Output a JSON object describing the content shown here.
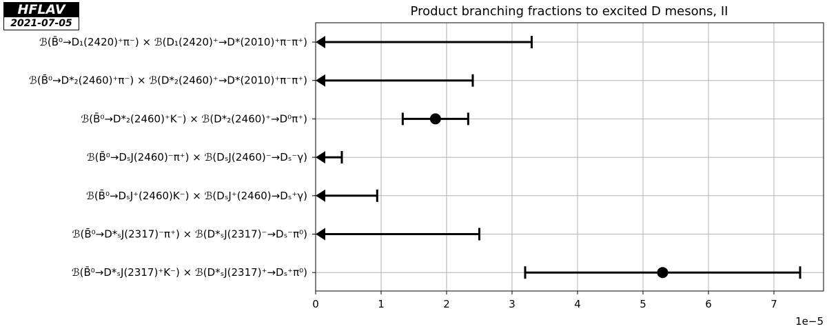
{
  "badge": {
    "name": "HFLAV",
    "date": "2021-07-05"
  },
  "chart_data": {
    "type": "errorbar",
    "title": "Product branching fractions to excited D mesons, II",
    "xlabel": "",
    "x_multiplier": "1e−5",
    "xlim": [
      0,
      7.8
    ],
    "x_ticks": [
      "0",
      "1",
      "2",
      "3",
      "4",
      "5",
      "6",
      "7"
    ],
    "grid": true,
    "entries": [
      {
        "label": "ℬ(B̄⁰→D₁(2420)⁺π⁻) × ℬ(D₁(2420)⁺→D*(2010)⁺π⁻π⁺)",
        "kind": "upper_limit",
        "upper": 3.3
      },
      {
        "label": "ℬ(B̄⁰→D*₂(2460)⁺π⁻) × ℬ(D*₂(2460)⁺→D*(2010)⁺π⁻π⁺)",
        "kind": "upper_limit",
        "upper": 2.4
      },
      {
        "label": "ℬ(B̄⁰→D*₂(2460)⁺K⁻) × ℬ(D*₂(2460)⁺→D⁰π⁺)",
        "kind": "measurement",
        "value": 1.83,
        "low": 1.33,
        "high": 2.33
      },
      {
        "label": "ℬ(B̄⁰→DₛJ(2460)⁻π⁺) × ℬ(DₛJ(2460)⁻→Dₛ⁻γ)",
        "kind": "upper_limit",
        "upper": 0.4
      },
      {
        "label": "ℬ(B̄⁰→DₛJ⁺(2460)K⁻) × ℬ(DₛJ⁺(2460)→Dₛ⁺γ)",
        "kind": "upper_limit",
        "upper": 0.94
      },
      {
        "label": "ℬ(B̄⁰→D*ₛJ(2317)⁻π⁺) × ℬ(D*ₛJ(2317)⁻→Dₛ⁻π⁰)",
        "kind": "upper_limit",
        "upper": 2.5
      },
      {
        "label": "ℬ(B̄⁰→D*ₛJ(2317)⁺K⁻) × ℬ(D*ₛJ(2317)⁺→Dₛ⁺π⁰)",
        "kind": "measurement",
        "value": 5.3,
        "low": 3.2,
        "high": 7.4
      }
    ]
  }
}
